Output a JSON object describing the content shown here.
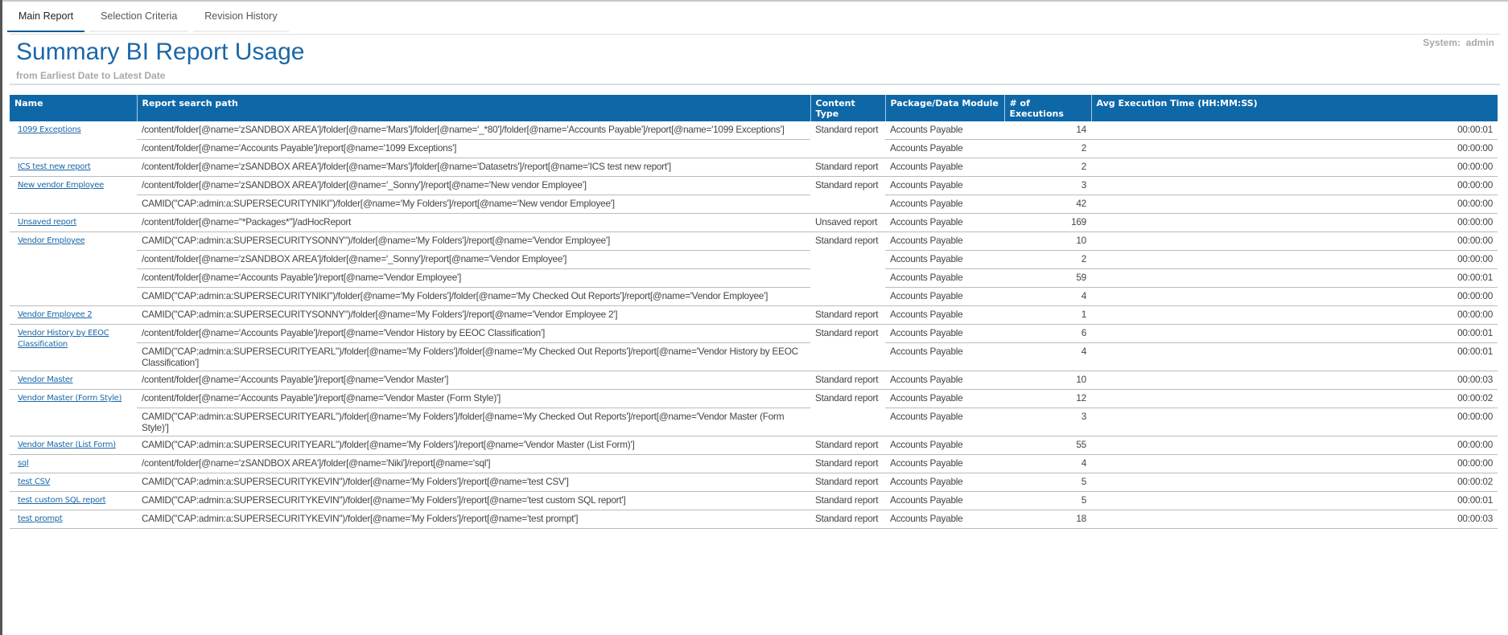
{
  "tabs": [
    {
      "label": "Main Report",
      "active": true
    },
    {
      "label": "Selection Criteria",
      "active": false
    },
    {
      "label": "Revision History",
      "active": false
    }
  ],
  "header": {
    "title": "Summary BI Report Usage",
    "subtitle": "from Earliest Date to Latest Date",
    "system": "System:  admin"
  },
  "colors": {
    "header_bg": "#0e68a8",
    "title": "#1a67a8"
  },
  "table": {
    "columns": [
      "Name",
      "Report search path",
      "Content Type",
      "Package/Data Module",
      "# of Executions",
      "Avg Execution Time (HH:MM:SS)"
    ],
    "groups": [
      {
        "name": "1099 Exceptions",
        "content_type": "Standard report",
        "rows": [
          {
            "path": "/content/folder[@name='zSANDBOX AREA']/folder[@name='Mars']/folder[@name='_*80']/folder[@name='Accounts Payable']/report[@name='1099 Exceptions']",
            "package": "Accounts Payable",
            "executions": 14,
            "avg": "00:00:01"
          },
          {
            "path": "/content/folder[@name='Accounts Payable']/report[@name='1099 Exceptions']",
            "package": "Accounts Payable",
            "executions": 2,
            "avg": "00:00:00"
          }
        ]
      },
      {
        "name": "ICS test new report",
        "content_type": "Standard report",
        "rows": [
          {
            "path": "/content/folder[@name='zSANDBOX AREA']/folder[@name='Mars']/folder[@name='Datasetrs']/report[@name='ICS test new report']",
            "package": "Accounts Payable",
            "executions": 2,
            "avg": "00:00:00"
          }
        ]
      },
      {
        "name": "New vendor Employee",
        "content_type": "Standard report",
        "rows": [
          {
            "path": "/content/folder[@name='zSANDBOX AREA']/folder[@name='_Sonny']/report[@name='New vendor Employee']",
            "package": "Accounts Payable",
            "executions": 3,
            "avg": "00:00:00"
          },
          {
            "path": "CAMID(\"CAP:admin:a:SUPERSECURITYNIKI\")/folder[@name='My Folders']/report[@name='New vendor Employee']",
            "package": "Accounts Payable",
            "executions": 42,
            "avg": "00:00:00"
          }
        ]
      },
      {
        "name": "Unsaved report",
        "content_type": "Unsaved report",
        "rows": [
          {
            "path": "/content/folder[@name=\"*Packages*\"]/adHocReport",
            "package": "Accounts Payable",
            "executions": 169,
            "avg": "00:00:00"
          }
        ]
      },
      {
        "name": "Vendor Employee",
        "content_type": "Standard report",
        "rows": [
          {
            "path": "CAMID(\"CAP:admin:a:SUPERSECURITYSONNY\")/folder[@name='My Folders']/report[@name='Vendor Employee']",
            "package": "Accounts Payable",
            "executions": 10,
            "avg": "00:00:00"
          },
          {
            "path": "/content/folder[@name='zSANDBOX AREA']/folder[@name='_Sonny']/report[@name='Vendor Employee']",
            "package": "Accounts Payable",
            "executions": 2,
            "avg": "00:00:00"
          },
          {
            "path": "/content/folder[@name='Accounts Payable']/report[@name='Vendor Employee']",
            "package": "Accounts Payable",
            "executions": 59,
            "avg": "00:00:01"
          },
          {
            "path": "CAMID(\"CAP:admin:a:SUPERSECURITYNIKI\")/folder[@name='My Folders']/folder[@name='My Checked Out Reports']/report[@name='Vendor Employee']",
            "package": "Accounts Payable",
            "executions": 4,
            "avg": "00:00:00"
          }
        ]
      },
      {
        "name": "Vendor Employee 2",
        "content_type": "Standard report",
        "rows": [
          {
            "path": "CAMID(\"CAP:admin:a:SUPERSECURITYSONNY\")/folder[@name='My Folders']/report[@name='Vendor Employee 2']",
            "package": "Accounts Payable",
            "executions": 1,
            "avg": "00:00:00"
          }
        ]
      },
      {
        "name": "Vendor History by EEOC Classification",
        "content_type": "Standard report",
        "rows": [
          {
            "path": "/content/folder[@name='Accounts Payable']/report[@name='Vendor History by EEOC Classification']",
            "package": "Accounts Payable",
            "executions": 6,
            "avg": "00:00:01"
          },
          {
            "path": "CAMID(\"CAP:admin:a:SUPERSECURITYEARL\")/folder[@name='My Folders']/folder[@name='My Checked Out Reports']/report[@name='Vendor History by EEOC Classification']",
            "package": "Accounts Payable",
            "executions": 4,
            "avg": "00:00:01"
          }
        ]
      },
      {
        "name": "Vendor Master",
        "content_type": "Standard report",
        "rows": [
          {
            "path": "/content/folder[@name='Accounts Payable']/report[@name='Vendor Master']",
            "package": "Accounts Payable",
            "executions": 10,
            "avg": "00:00:03"
          }
        ]
      },
      {
        "name": "Vendor Master (Form Style)",
        "content_type": "Standard report",
        "rows": [
          {
            "path": "/content/folder[@name='Accounts Payable']/report[@name='Vendor Master (Form Style)']",
            "package": "Accounts Payable",
            "executions": 12,
            "avg": "00:00:02"
          },
          {
            "path": "CAMID(\"CAP:admin:a:SUPERSECURITYEARL\")/folder[@name='My Folders']/folder[@name='My Checked Out Reports']/report[@name='Vendor Master (Form Style)']",
            "package": "Accounts Payable",
            "executions": 3,
            "avg": "00:00:00"
          }
        ]
      },
      {
        "name": "Vendor Master (List Form)",
        "content_type": "Standard report",
        "rows": [
          {
            "path": "CAMID(\"CAP:admin:a:SUPERSECURITYEARL\")/folder[@name='My Folders']/report[@name='Vendor Master (List Form)']",
            "package": "Accounts Payable",
            "executions": 55,
            "avg": "00:00:00"
          }
        ]
      },
      {
        "name": "sql",
        "content_type": "Standard report",
        "rows": [
          {
            "path": "/content/folder[@name='zSANDBOX AREA']/folder[@name='Niki']/report[@name='sql']",
            "package": "Accounts Payable",
            "executions": 4,
            "avg": "00:00:00"
          }
        ]
      },
      {
        "name": "test CSV",
        "content_type": "Standard report",
        "rows": [
          {
            "path": "CAMID(\"CAP:admin:a:SUPERSECURITYKEVIN\")/folder[@name='My Folders']/report[@name='test CSV']",
            "package": "Accounts Payable",
            "executions": 5,
            "avg": "00:00:02"
          }
        ]
      },
      {
        "name": "test custom SQL report",
        "content_type": "Standard report",
        "rows": [
          {
            "path": "CAMID(\"CAP:admin:a:SUPERSECURITYKEVIN\")/folder[@name='My Folders']/report[@name='test custom SQL report']",
            "package": "Accounts Payable",
            "executions": 5,
            "avg": "00:00:01"
          }
        ]
      },
      {
        "name": "test prompt",
        "content_type": "Standard report",
        "rows": [
          {
            "path": "CAMID(\"CAP:admin:a:SUPERSECURITYKEVIN\")/folder[@name='My Folders']/report[@name='test prompt']",
            "package": "Accounts Payable",
            "executions": 18,
            "avg": "00:00:03"
          }
        ]
      }
    ]
  }
}
